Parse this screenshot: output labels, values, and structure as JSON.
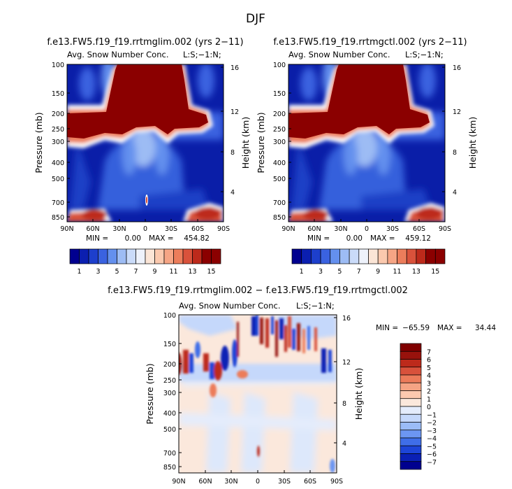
{
  "page_title": "DJF",
  "colors": {
    "blue_scale": [
      "#00008f",
      "#0b1fb0",
      "#1d3fcc",
      "#3a62e0",
      "#6490ee",
      "#9dbcf4",
      "#cadbf9",
      "#eef2fb",
      "#fbe5d6",
      "#fbc9ae",
      "#f6a585",
      "#ec7d5b",
      "#d9523b",
      "#bd2a1b",
      "#8b0000"
    ],
    "diverging": [
      "#00008f",
      "#0a20b5",
      "#1d45d8",
      "#3f6ee8",
      "#6c96f2",
      "#9bbcf7",
      "#c5d8fb",
      "#e4ecfc",
      "#fbe8dc",
      "#fcc9af",
      "#f5a484",
      "#ec7b5a",
      "#d8513b",
      "#bd2a1b",
      "#98120c",
      "#800000"
    ]
  },
  "chart_data": [
    {
      "type": "heatmap",
      "id": "top-left",
      "title": "f.e13.FW5.f19_f19.rrtmglim.002 (yrs 2−11)",
      "subtitle": "Avg. Snow Number Conc.",
      "level_tag": "L:S;−1:N;",
      "xlabel": "",
      "ylabel": "Pressure (mb)",
      "y2label": "Height (km)",
      "x_ticks": [
        "90N",
        "60N",
        "30N",
        "0",
        "30S",
        "60S",
        "90S"
      ],
      "y_ticks": [
        "100",
        "150",
        "200",
        "250",
        "300",
        "400",
        "500",
        "700",
        "850"
      ],
      "y_ticks_values": [
        100,
        150,
        200,
        250,
        300,
        400,
        500,
        700,
        850
      ],
      "y2_ticks": [
        "16",
        "12",
        "8",
        "4"
      ],
      "y2_ticks_values": [
        16,
        12,
        8,
        4
      ],
      "ylim": [
        100,
        925
      ],
      "xlim": [
        90,
        -90
      ],
      "min_label": "MIN =",
      "min_value": "0.00",
      "max_label": "MAX =",
      "max_value": "454.82",
      "colorbar_ticks": [
        "1",
        "3",
        "5",
        "7",
        "9",
        "11",
        "13",
        "15"
      ],
      "colorbar_levels": [
        1,
        2,
        3,
        4,
        5,
        6,
        7,
        8,
        9,
        10,
        11,
        12,
        13,
        14,
        15
      ]
    },
    {
      "type": "heatmap",
      "id": "top-right",
      "title": "f.e13.FW5.f19_f19.rrtmgctl.002 (yrs 2−11)",
      "subtitle": "Avg. Snow Number Conc.",
      "level_tag": "L:S;−1:N;",
      "xlabel": "",
      "ylabel": "Pressure (mb)",
      "y2label": "Height (km)",
      "x_ticks": [
        "90N",
        "60N",
        "30N",
        "0",
        "30S",
        "60S",
        "90S"
      ],
      "y_ticks": [
        "100",
        "150",
        "200",
        "250",
        "300",
        "400",
        "500",
        "700",
        "850"
      ],
      "y_ticks_values": [
        100,
        150,
        200,
        250,
        300,
        400,
        500,
        700,
        850
      ],
      "y2_ticks": [
        "16",
        "12",
        "8",
        "4"
      ],
      "y2_ticks_values": [
        16,
        12,
        8,
        4
      ],
      "ylim": [
        100,
        925
      ],
      "xlim": [
        90,
        -90
      ],
      "min_label": "MIN =",
      "min_value": "0.00",
      "max_label": "MAX =",
      "max_value": "459.12",
      "colorbar_ticks": [
        "1",
        "3",
        "5",
        "7",
        "9",
        "11",
        "13",
        "15"
      ],
      "colorbar_levels": [
        1,
        2,
        3,
        4,
        5,
        6,
        7,
        8,
        9,
        10,
        11,
        12,
        13,
        14,
        15
      ]
    },
    {
      "type": "heatmap",
      "id": "difference",
      "title": "f.e13.FW5.f19_f19.rrtmglim.002 − f.e13.FW5.f19_f19.rrtmgctl.002",
      "subtitle": "Avg. Snow Number Conc.",
      "level_tag": "L:S;−1:N;",
      "xlabel": "",
      "ylabel": "Pressure (mb)",
      "y2label": "Height (km)",
      "x_ticks": [
        "90N",
        "60N",
        "30N",
        "0",
        "30S",
        "60S",
        "90S"
      ],
      "y_ticks": [
        "100",
        "150",
        "200",
        "250",
        "300",
        "400",
        "500",
        "700",
        "850"
      ],
      "y_ticks_values": [
        100,
        150,
        200,
        250,
        300,
        400,
        500,
        700,
        850
      ],
      "y2_ticks": [
        "16",
        "12",
        "8",
        "4"
      ],
      "y2_ticks_values": [
        16,
        12,
        8,
        4
      ],
      "ylim": [
        100,
        925
      ],
      "xlim": [
        90,
        -90
      ],
      "min_label": "MIN =",
      "min_value": "−65.59",
      "max_label": "MAX =",
      "max_value": "34.44",
      "colorbar_ticks": [
        "7",
        "6",
        "5",
        "4",
        "3",
        "2",
        "1",
        "0",
        "−1",
        "−2",
        "−3",
        "−4",
        "−5",
        "−6",
        "−7"
      ],
      "colorbar_levels": [
        -7,
        -6,
        -5,
        -4,
        -3,
        -2,
        -1,
        0,
        1,
        2,
        3,
        4,
        5,
        6,
        7
      ]
    }
  ]
}
